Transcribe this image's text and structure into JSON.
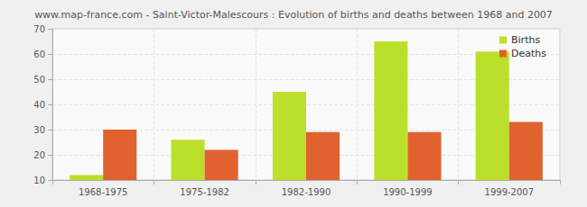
{
  "chart_data": {
    "type": "bar",
    "title": "www.map-france.com - Saint-Victor-Malescours : Evolution of births and deaths between 1968 and 2007",
    "categories": [
      "1968-1975",
      "1975-1982",
      "1982-1990",
      "1990-1999",
      "1999-2007"
    ],
    "series": [
      {
        "name": "Births",
        "color": "#bbe02c",
        "values": [
          12,
          26,
          45,
          65,
          61
        ]
      },
      {
        "name": "Deaths",
        "color": "#e0622f",
        "values": [
          30,
          22,
          29,
          29,
          33
        ]
      }
    ],
    "ylim": [
      10,
      70
    ],
    "yticks": [
      10,
      20,
      30,
      40,
      50,
      60,
      70
    ],
    "grid": true,
    "legend": "upper-right"
  }
}
